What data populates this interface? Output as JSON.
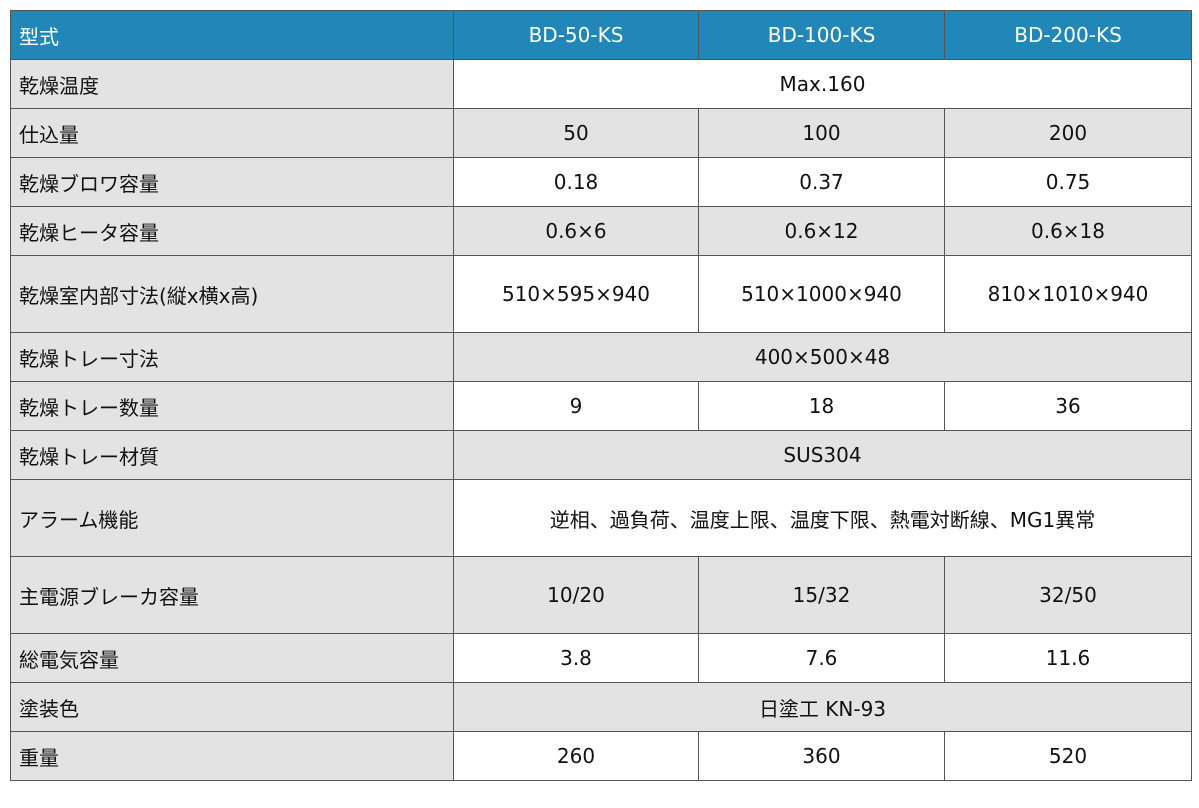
{
  "header": {
    "label": "型式",
    "models": [
      "BD-50-KS",
      "BD-100-KS",
      "BD-200-KS"
    ]
  },
  "rows": [
    {
      "label": "乾燥温度",
      "values": [
        "Max.160"
      ],
      "h": 49,
      "bg": "w"
    },
    {
      "label": "仕込量",
      "values": [
        "50",
        "100",
        "200"
      ],
      "h": 49,
      "bg": "g"
    },
    {
      "label": "乾燥ブロワ容量",
      "values": [
        "0.18",
        "0.37",
        "0.75"
      ],
      "h": 49,
      "bg": "w"
    },
    {
      "label": "乾燥ヒータ容量",
      "values": [
        "0.6×6",
        "0.6×12",
        "0.6×18"
      ],
      "h": 49,
      "bg": "g"
    },
    {
      "label": "乾燥室内部寸法(縦x横x高)",
      "values": [
        "510×595×940",
        "510×1000×940",
        "810×1010×940"
      ],
      "h": 77,
      "bg": "w"
    },
    {
      "label": "乾燥トレー寸法",
      "values": [
        "400×500×48"
      ],
      "h": 49,
      "bg": "g"
    },
    {
      "label": "乾燥トレー数量",
      "values": [
        "9",
        "18",
        "36"
      ],
      "h": 49,
      "bg": "w"
    },
    {
      "label": "乾燥トレー材質",
      "values": [
        "SUS304"
      ],
      "h": 49,
      "bg": "g"
    },
    {
      "label": "アラーム機能",
      "values": [
        "逆相、過負荷、温度上限、温度下限、熱電対断線、MG1異常"
      ],
      "h": 77,
      "bg": "w"
    },
    {
      "label": "主電源ブレーカ容量",
      "values": [
        "10/20",
        "15/32",
        "32/50"
      ],
      "h": 77,
      "bg": "g"
    },
    {
      "label": "総電気容量",
      "values": [
        "3.8",
        "7.6",
        "11.6"
      ],
      "h": 49,
      "bg": "w"
    },
    {
      "label": "塗装色",
      "values": [
        "日塗工 KN-93"
      ],
      "h": 49,
      "bg": "g"
    },
    {
      "label": "重量",
      "values": [
        "260",
        "360",
        "520"
      ],
      "h": 49,
      "bg": "w"
    }
  ]
}
